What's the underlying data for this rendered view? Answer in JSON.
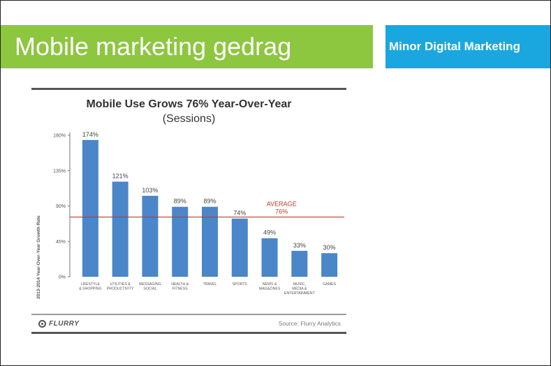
{
  "slide": {
    "title": "Mobile marketing gedrag",
    "brand": "Minor Digital Marketing",
    "colors": {
      "title_bar": "#8dc63f",
      "brand_box": "#1aa7df",
      "bar": "#4a86c8",
      "average_line": "#c0392b"
    }
  },
  "chart_data": {
    "type": "bar",
    "title": "Mobile Use Grows 76% Year-Over-Year",
    "subtitle": "(Sessions)",
    "xlabel": "",
    "ylabel": "2013-2014 Year-Over-Year Growth Rate",
    "ylim": [
      0,
      180
    ],
    "yticks": [
      0,
      45,
      90,
      135,
      180
    ],
    "ytick_labels": [
      "0%",
      "45%",
      "90%",
      "135%",
      "180%"
    ],
    "categories": [
      [
        "LIFESTYLE",
        "& SHOPPING"
      ],
      [
        "UTILITIES &",
        "PRODUCTIVITY"
      ],
      [
        "MESSAGING",
        "SOCIAL"
      ],
      [
        "HEALTH &",
        "FITNESS"
      ],
      [
        "TRAVEL"
      ],
      [
        "SPORTS"
      ],
      [
        "NEWS &",
        "MAGAZINES"
      ],
      [
        "MUSIC,",
        "MEDIA &",
        "ENTERTAINMENT"
      ],
      [
        "GAMES"
      ]
    ],
    "values": [
      174,
      121,
      103,
      89,
      89,
      74,
      49,
      33,
      30
    ],
    "value_labels": [
      "174%",
      "121%",
      "103%",
      "89%",
      "89%",
      "74%",
      "49%",
      "33%",
      "30%"
    ],
    "average": {
      "value": 76,
      "label": [
        "AVERAGE",
        "76%"
      ]
    },
    "grid": false,
    "legend": "none"
  },
  "footer": {
    "logo_text": "FLURRY",
    "source": "Source: Flurry Analytics"
  }
}
